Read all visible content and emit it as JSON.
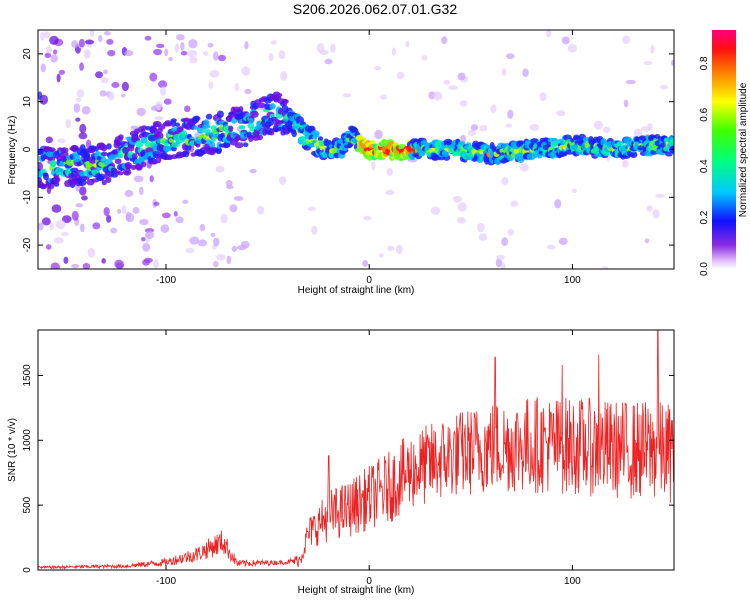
{
  "title": "S206.2026.062.07.01.G32",
  "chart_data": [
    {
      "type": "heatmap",
      "xlabel": "Height of straight line (km)",
      "ylabel": "Frequency (Hz)",
      "xlim": [
        -163,
        150
      ],
      "ylim": [
        -25,
        25
      ],
      "xticks": [
        -100,
        0,
        100
      ],
      "yticks": [
        -20,
        -10,
        0,
        10,
        20
      ],
      "ridge": {
        "x": [
          -163,
          -130,
          -115,
          -100,
          -80,
          -60,
          -45,
          -38,
          -32,
          -28,
          -22,
          -15,
          -8,
          -5,
          0,
          20,
          40,
          60,
          80,
          100,
          120,
          140,
          150
        ],
        "y": [
          -4,
          -3,
          0,
          2,
          3,
          5,
          8,
          6,
          3,
          2,
          0,
          0,
          3,
          1,
          0,
          0,
          0,
          -1,
          0,
          1,
          0,
          1,
          1
        ]
      },
      "colorbar": {
        "label": "Normalized spectral amplitude",
        "ticks": [
          "0.0",
          "0.2",
          "0.4",
          "0.6",
          "0.8"
        ],
        "range": [
          0,
          0.93
        ]
      }
    },
    {
      "type": "line",
      "xlabel": "Height of straight line (km)",
      "ylabel": "SNR (10 * v/v)",
      "xlim": [
        -163,
        150
      ],
      "ylim": [
        0,
        1850
      ],
      "xticks": [
        -100,
        0,
        100
      ],
      "yticks": [
        0,
        500,
        1000,
        1500
      ],
      "color": "#ee2222",
      "envelope": {
        "x": [
          -163,
          -120,
          -100,
          -85,
          -72,
          -65,
          -40,
          -34,
          -30,
          -20,
          -10,
          0,
          10,
          20,
          40,
          60,
          80,
          100,
          120,
          140,
          150
        ],
        "mean": [
          20,
          30,
          60,
          120,
          220,
          50,
          60,
          80,
          280,
          420,
          470,
          560,
          640,
          760,
          880,
          950,
          970,
          960,
          930,
          920,
          900
        ],
        "amp": [
          10,
          15,
          30,
          60,
          100,
          30,
          15,
          60,
          120,
          200,
          220,
          250,
          280,
          300,
          330,
          360,
          380,
          380,
          380,
          390,
          390
        ]
      },
      "peaks": [
        {
          "x": -20,
          "y": 880
        },
        {
          "x": 62,
          "y": 1640
        },
        {
          "x": 95,
          "y": 1580
        },
        {
          "x": 113,
          "y": 1660
        },
        {
          "x": 142,
          "y": 1850
        }
      ]
    }
  ]
}
